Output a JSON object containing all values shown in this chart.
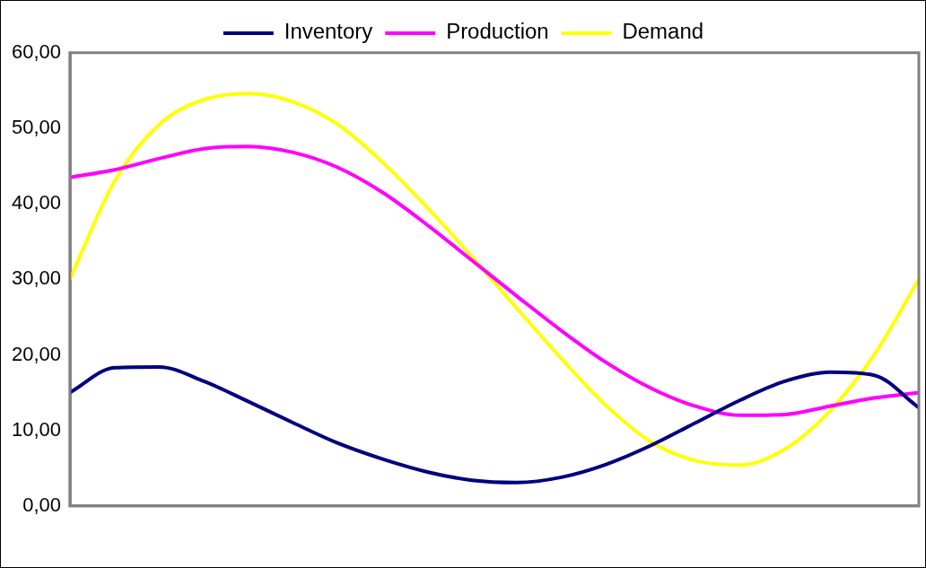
{
  "chart_data": {
    "type": "line",
    "categories": [
      null,
      null,
      null,
      null,
      null,
      null,
      null,
      null,
      null,
      null,
      null,
      null,
      null,
      null,
      null,
      null,
      null,
      null,
      null,
      null
    ],
    "series": [
      {
        "name": "Inventory",
        "color": "#000080",
        "values": [
          15,
          18.3,
          18.4,
          16.5,
          13.8,
          11,
          8.3,
          6.2,
          4.5,
          3.4,
          3.1,
          3.8,
          5.5,
          8,
          11,
          14,
          16.5,
          17.7,
          17.3,
          13
        ]
      },
      {
        "name": "Production",
        "color": "#ff00ff",
        "values": [
          43.5,
          44.5,
          46,
          47.3,
          47.6,
          46.8,
          44.8,
          41.5,
          37.2,
          32.5,
          27.8,
          23.2,
          19,
          15.6,
          13.2,
          12,
          12.1,
          13.2,
          14.3,
          15
        ]
      },
      {
        "name": "Demand",
        "color": "#ffff00",
        "values": [
          30,
          43,
          50.5,
          53.8,
          54.6,
          53.5,
          50.5,
          45.5,
          39.5,
          33,
          26.2,
          19.5,
          13.3,
          8.5,
          6,
          5.4,
          7.5,
          12.5,
          20,
          30
        ]
      }
    ],
    "ylim": [
      0,
      60
    ],
    "yticks": [
      {
        "value": 0,
        "label": "0,00"
      },
      {
        "value": 10,
        "label": "10,00"
      },
      {
        "value": 20,
        "label": "20,00"
      },
      {
        "value": 30,
        "label": "30,00"
      },
      {
        "value": 40,
        "label": "40,00"
      },
      {
        "value": 50,
        "label": "50,00"
      },
      {
        "value": 60,
        "label": "60,00"
      }
    ],
    "grid": false,
    "legend": "top",
    "marker": "none",
    "line_style": "solid"
  }
}
